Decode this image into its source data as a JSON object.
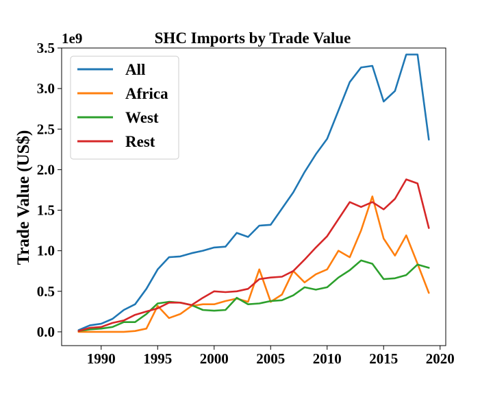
{
  "chart_data": {
    "type": "line",
    "title": "SHC Imports by Trade Value",
    "xlabel": "",
    "ylabel": "Trade Value (US$)",
    "y_offset_label": "1e9",
    "xlim": [
      1986.5,
      2020.5
    ],
    "ylim": [
      -0.17,
      3.5
    ],
    "x_ticks": [
      1990,
      1995,
      2000,
      2005,
      2010,
      2015,
      2020
    ],
    "x_tick_labels": [
      "1990",
      "1995",
      "2000",
      "2005",
      "2010",
      "2015",
      "2020"
    ],
    "y_ticks": [
      0,
      0.5,
      1.0,
      1.5,
      2.0,
      2.5,
      3.0,
      3.5
    ],
    "y_tick_labels": [
      "0.0",
      "0.5",
      "1.0",
      "1.5",
      "2.0",
      "2.5",
      "3.0",
      "3.5"
    ],
    "grid": false,
    "legend_position": "top-left",
    "x": [
      1988,
      1989,
      1990,
      1991,
      1992,
      1993,
      1994,
      1995,
      1996,
      1997,
      1998,
      1999,
      2000,
      2001,
      2002,
      2003,
      2004,
      2005,
      2006,
      2007,
      2008,
      2009,
      2010,
      2011,
      2012,
      2013,
      2014,
      2015,
      2016,
      2017,
      2018,
      2019
    ],
    "series": [
      {
        "name": "All",
        "color": "#1f77b4",
        "values": [
          0.02,
          0.08,
          0.1,
          0.16,
          0.27,
          0.34,
          0.53,
          0.77,
          0.92,
          0.93,
          0.97,
          1.0,
          1.04,
          1.05,
          1.22,
          1.17,
          1.31,
          1.32,
          1.52,
          1.72,
          1.97,
          2.19,
          2.38,
          2.73,
          3.08,
          3.26,
          3.28,
          2.84,
          2.97,
          3.42,
          3.42,
          2.37
        ]
      },
      {
        "name": "Africa",
        "color": "#ff7f0e",
        "values": [
          0.0,
          0.0,
          0.0,
          0.0,
          0.0,
          0.01,
          0.04,
          0.32,
          0.17,
          0.22,
          0.32,
          0.34,
          0.34,
          0.38,
          0.41,
          0.37,
          0.77,
          0.37,
          0.46,
          0.75,
          0.61,
          0.71,
          0.77,
          1.0,
          0.92,
          1.25,
          1.67,
          1.15,
          0.94,
          1.19,
          0.84,
          0.48
        ]
      },
      {
        "name": "West",
        "color": "#2ca02c",
        "values": [
          0.01,
          0.03,
          0.04,
          0.06,
          0.12,
          0.12,
          0.22,
          0.35,
          0.37,
          0.36,
          0.33,
          0.27,
          0.26,
          0.27,
          0.42,
          0.34,
          0.35,
          0.38,
          0.39,
          0.45,
          0.55,
          0.52,
          0.55,
          0.67,
          0.76,
          0.88,
          0.84,
          0.65,
          0.66,
          0.7,
          0.83,
          0.79
        ]
      },
      {
        "name": "Rest",
        "color": "#d62728",
        "values": [
          0.01,
          0.05,
          0.06,
          0.11,
          0.14,
          0.21,
          0.25,
          0.29,
          0.36,
          0.36,
          0.33,
          0.42,
          0.5,
          0.49,
          0.5,
          0.53,
          0.65,
          0.67,
          0.68,
          0.75,
          0.89,
          1.04,
          1.18,
          1.39,
          1.6,
          1.54,
          1.6,
          1.51,
          1.64,
          1.88,
          1.83,
          1.28
        ]
      }
    ]
  }
}
